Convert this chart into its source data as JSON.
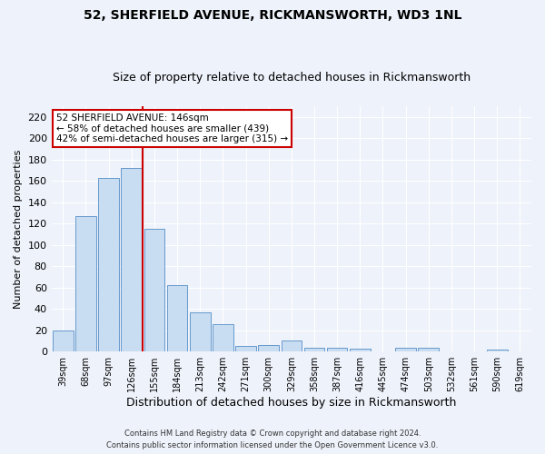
{
  "title1": "52, SHERFIELD AVENUE, RICKMANSWORTH, WD3 1NL",
  "title2": "Size of property relative to detached houses in Rickmansworth",
  "xlabel": "Distribution of detached houses by size in Rickmansworth",
  "ylabel": "Number of detached properties",
  "categories": [
    "39sqm",
    "68sqm",
    "97sqm",
    "126sqm",
    "155sqm",
    "184sqm",
    "213sqm",
    "242sqm",
    "271sqm",
    "300sqm",
    "329sqm",
    "358sqm",
    "387sqm",
    "416sqm",
    "445sqm",
    "474sqm",
    "503sqm",
    "532sqm",
    "561sqm",
    "590sqm",
    "619sqm"
  ],
  "values": [
    20,
    127,
    163,
    172,
    115,
    62,
    37,
    26,
    5,
    6,
    10,
    4,
    4,
    3,
    0,
    4,
    4,
    0,
    0,
    2,
    0
  ],
  "bar_color": "#c9ddf2",
  "bar_edgecolor": "#6699cc",
  "vline_x_index": 3.5,
  "vline_color": "#cc0000",
  "annotation_text": "52 SHERFIELD AVENUE: 146sqm\n← 58% of detached houses are smaller (439)\n42% of semi-detached houses are larger (315) →",
  "annotation_box_color": "white",
  "annotation_box_edgecolor": "#cc0000",
  "ylim": [
    0,
    230
  ],
  "yticks": [
    0,
    20,
    40,
    60,
    80,
    100,
    120,
    140,
    160,
    180,
    200,
    220
  ],
  "footer1": "Contains HM Land Registry data © Crown copyright and database right 2024.",
  "footer2": "Contains public sector information licensed under the Open Government Licence v3.0.",
  "bg_color": "#eef2fa",
  "grid_color": "#ffffff",
  "title1_fontsize": 10,
  "title2_fontsize": 9,
  "xlabel_fontsize": 9,
  "ylabel_fontsize": 8,
  "tick_fontsize": 8,
  "xtick_fontsize": 7,
  "annotation_fontsize": 7.5
}
